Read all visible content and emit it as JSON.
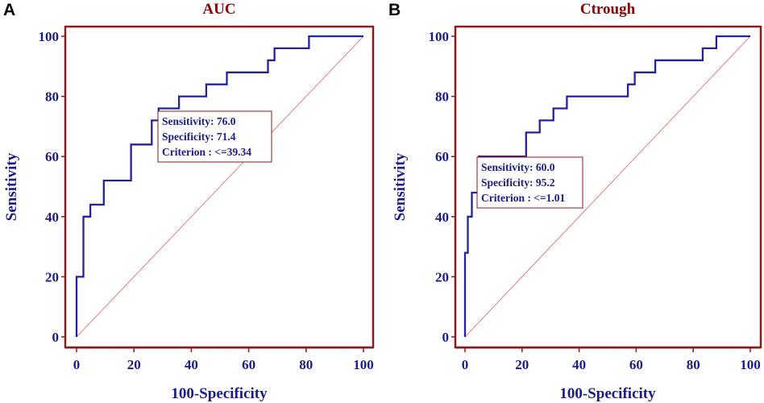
{
  "chart_data": [
    {
      "type": "line",
      "panel": "A",
      "title": "AUC",
      "xlabel": "100-Specificity",
      "ylabel": "Sensitivity",
      "xlim": [
        0,
        100
      ],
      "ylim": [
        0,
        100
      ],
      "xticks": [
        0,
        20,
        40,
        60,
        80,
        100
      ],
      "yticks": [
        0,
        20,
        40,
        60,
        80,
        100
      ],
      "colors": {
        "curve": "#2222a0",
        "diagonal": "#e06060",
        "frame": "#8b1a1a"
      },
      "series": [
        {
          "name": "ROC",
          "x": [
            0,
            0,
            2.4,
            2.4,
            4.8,
            4.8,
            9.5,
            9.5,
            19,
            19,
            26.2,
            26.2,
            28.6,
            28.6,
            35.7,
            35.7,
            45.2,
            45.2,
            52.4,
            52.4,
            66.7,
            66.7,
            69,
            69,
            81,
            81,
            100
          ],
          "y": [
            0,
            20,
            20,
            40,
            40,
            44,
            44,
            52,
            52,
            64,
            64,
            72,
            72,
            76,
            76,
            80,
            80,
            84,
            84,
            88,
            88,
            92,
            92,
            96,
            96,
            100,
            100
          ]
        },
        {
          "name": "reference",
          "x": [
            0,
            100
          ],
          "y": [
            0,
            100
          ]
        }
      ],
      "annotation": {
        "lines": [
          "Sensitivity: 76.0",
          "Specificity: 71.4",
          "Criterion : <=39.34"
        ]
      }
    },
    {
      "type": "line",
      "panel": "B",
      "title": "Ctrough",
      "xlabel": "100-Specificity",
      "ylabel": "Sensitivity",
      "xlim": [
        0,
        100
      ],
      "ylim": [
        0,
        100
      ],
      "xticks": [
        0,
        20,
        40,
        60,
        80,
        100
      ],
      "yticks": [
        0,
        20,
        40,
        60,
        80,
        100
      ],
      "colors": {
        "curve": "#2222a0",
        "diagonal": "#e06060",
        "frame": "#8b1a1a"
      },
      "series": [
        {
          "name": "ROC",
          "x": [
            0,
            0,
            1,
            1,
            2.4,
            2.4,
            4.8,
            4.8,
            21.4,
            21.4,
            26.2,
            26.2,
            31,
            31,
            35.7,
            35.7,
            57.1,
            57.1,
            59.5,
            59.5,
            66.7,
            66.7,
            83.3,
            83.3,
            88.1,
            88.1,
            100
          ],
          "y": [
            0,
            28,
            28,
            40,
            40,
            48,
            48,
            60,
            60,
            68,
            68,
            72,
            72,
            76,
            76,
            80,
            80,
            84,
            84,
            88,
            88,
            92,
            92,
            96,
            96,
            100,
            100
          ]
        },
        {
          "name": "reference",
          "x": [
            0,
            100
          ],
          "y": [
            0,
            100
          ]
        }
      ],
      "annotation": {
        "lines": [
          "Sensitivity: 60.0",
          "Specificity: 95.2",
          "Criterion : <=1.01"
        ]
      }
    }
  ]
}
